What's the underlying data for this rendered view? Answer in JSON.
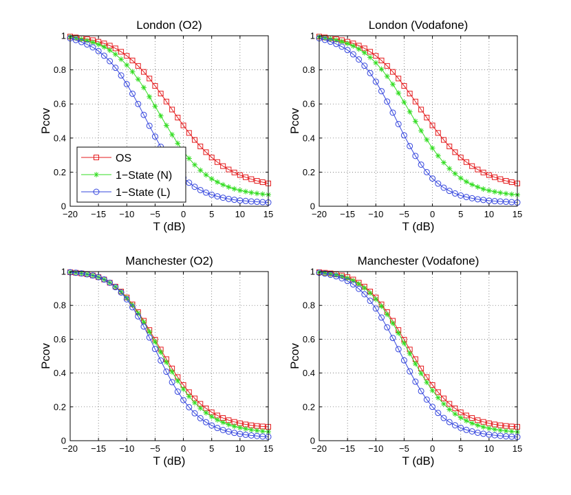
{
  "figure": {
    "series_names": [
      "OS",
      "1−State (N)",
      "1−State (L)"
    ],
    "series_colors": [
      "#e41a1c",
      "#33dd22",
      "#3344dd"
    ],
    "series_markers": [
      "square",
      "asterisk",
      "circle"
    ]
  },
  "chart_data": [
    {
      "type": "line",
      "title": "London (O2)",
      "xlabel": "T (dB)",
      "ylabel": "Pcov",
      "xlim": [
        -20,
        15
      ],
      "ylim": [
        0,
        1
      ],
      "xticks": [
        -20,
        -15,
        -10,
        -5,
        0,
        5,
        10,
        15
      ],
      "yticks": [
        0,
        0.2,
        0.4,
        0.6,
        0.8,
        1
      ],
      "grid": true,
      "legend_position": "lower-left",
      "x": [
        -20,
        -19,
        -18,
        -17,
        -16,
        -15,
        -14,
        -13,
        -12,
        -11,
        -10,
        -9,
        -8,
        -7,
        -6,
        -5,
        -4,
        -3,
        -2,
        -1,
        0,
        1,
        2,
        3,
        4,
        5,
        6,
        7,
        8,
        9,
        10,
        11,
        12,
        13,
        14,
        15
      ],
      "series": [
        {
          "name": "OS",
          "values": [
            0.995,
            0.99,
            0.985,
            0.98,
            0.974,
            0.965,
            0.955,
            0.942,
            0.926,
            0.906,
            0.882,
            0.855,
            0.823,
            0.788,
            0.749,
            0.706,
            0.661,
            0.614,
            0.567,
            0.52,
            0.474,
            0.43,
            0.389,
            0.351,
            0.317,
            0.286,
            0.259,
            0.2355,
            0.2155,
            0.198,
            0.183,
            0.17,
            0.159,
            0.149,
            0.141,
            0.134
          ]
        },
        {
          "name": "1−State (N)",
          "values": [
            0.993,
            0.986,
            0.979,
            0.971,
            0.961,
            0.949,
            0.934,
            0.915,
            0.891,
            0.862,
            0.828,
            0.789,
            0.745,
            0.696,
            0.642,
            0.586,
            0.53,
            0.474,
            0.42,
            0.369,
            0.322,
            0.28,
            0.243,
            0.211,
            0.184,
            0.161,
            0.142,
            0.126,
            0.113,
            0.102,
            0.093,
            0.086,
            0.08,
            0.075,
            0.071,
            0.068
          ]
        },
        {
          "name": "1−State (L)",
          "values": [
            0.985,
            0.975,
            0.963,
            0.949,
            0.932,
            0.91,
            0.883,
            0.851,
            0.812,
            0.767,
            0.716,
            0.66,
            0.6,
            0.536,
            0.472,
            0.409,
            0.349,
            0.294,
            0.245,
            0.203,
            0.167,
            0.138,
            0.114,
            0.095,
            0.08,
            0.068,
            0.058,
            0.05,
            0.043,
            0.038,
            0.034,
            0.031,
            0.028,
            0.026,
            0.024,
            0.022
          ]
        }
      ]
    },
    {
      "type": "line",
      "title": "London (Vodafone)",
      "xlabel": "T (dB)",
      "ylabel": "Pcov",
      "xlim": [
        -20,
        15
      ],
      "ylim": [
        0,
        1
      ],
      "xticks": [
        -20,
        -15,
        -10,
        -5,
        0,
        5,
        10,
        15
      ],
      "yticks": [
        0,
        0.2,
        0.4,
        0.6,
        0.8,
        1
      ],
      "grid": true,
      "x": [
        -20,
        -19,
        -18,
        -17,
        -16,
        -15,
        -14,
        -13,
        -12,
        -11,
        -10,
        -9,
        -8,
        -7,
        -6,
        -5,
        -4,
        -3,
        -2,
        -1,
        0,
        1,
        2,
        3,
        4,
        5,
        6,
        7,
        8,
        9,
        10,
        11,
        12,
        13,
        14,
        15
      ],
      "series": [
        {
          "name": "OS",
          "values": [
            0.995,
            0.99,
            0.985,
            0.98,
            0.974,
            0.965,
            0.955,
            0.942,
            0.926,
            0.906,
            0.882,
            0.855,
            0.823,
            0.788,
            0.749,
            0.706,
            0.661,
            0.614,
            0.567,
            0.52,
            0.474,
            0.43,
            0.389,
            0.351,
            0.317,
            0.286,
            0.259,
            0.2355,
            0.2155,
            0.198,
            0.183,
            0.17,
            0.159,
            0.149,
            0.141,
            0.134
          ]
        },
        {
          "name": "1−State (N)",
          "values": [
            0.993,
            0.987,
            0.981,
            0.974,
            0.965,
            0.954,
            0.94,
            0.922,
            0.9,
            0.873,
            0.841,
            0.804,
            0.762,
            0.715,
            0.664,
            0.61,
            0.554,
            0.498,
            0.443,
            0.39,
            0.341,
            0.296,
            0.256,
            0.221,
            0.191,
            0.165,
            0.144,
            0.127,
            0.113,
            0.101,
            0.092,
            0.085,
            0.079,
            0.074,
            0.07,
            0.067
          ]
        },
        {
          "name": "1−State (L)",
          "values": [
            0.985,
            0.976,
            0.965,
            0.952,
            0.936,
            0.916,
            0.891,
            0.861,
            0.824,
            0.781,
            0.731,
            0.675,
            0.614,
            0.549,
            0.482,
            0.416,
            0.353,
            0.295,
            0.244,
            0.2,
            0.163,
            0.133,
            0.109,
            0.09,
            0.075,
            0.063,
            0.054,
            0.047,
            0.041,
            0.037,
            0.033,
            0.03,
            0.028,
            0.026,
            0.024,
            0.022
          ]
        }
      ]
    },
    {
      "type": "line",
      "title": "Manchester (O2)",
      "xlabel": "T (dB)",
      "ylabel": "Pcov",
      "xlim": [
        -20,
        15
      ],
      "ylim": [
        0,
        1
      ],
      "xticks": [
        -20,
        -15,
        -10,
        -5,
        0,
        5,
        10,
        15
      ],
      "yticks": [
        0,
        0.2,
        0.4,
        0.6,
        0.8,
        1
      ],
      "grid": true,
      "x": [
        -20,
        -19,
        -18,
        -17,
        -16,
        -15,
        -14,
        -13,
        -12,
        -11,
        -10,
        -9,
        -8,
        -7,
        -6,
        -5,
        -4,
        -3,
        -2,
        -1,
        0,
        1,
        2,
        3,
        4,
        5,
        6,
        7,
        8,
        9,
        10,
        11,
        12,
        13,
        14,
        15
      ],
      "series": [
        {
          "name": "OS",
          "values": [
            0.996,
            0.993,
            0.989,
            0.984,
            0.977,
            0.967,
            0.953,
            0.934,
            0.911,
            0.882,
            0.847,
            0.806,
            0.76,
            0.709,
            0.654,
            0.597,
            0.539,
            0.482,
            0.427,
            0.376,
            0.329,
            0.287,
            0.25,
            0.218,
            0.191,
            0.168,
            0.149,
            0.134,
            0.121,
            0.111,
            0.103,
            0.096,
            0.091,
            0.087,
            0.084,
            0.082
          ]
        },
        {
          "name": "1−State (N)",
          "values": [
            0.996,
            0.993,
            0.989,
            0.984,
            0.977,
            0.967,
            0.953,
            0.934,
            0.91,
            0.88,
            0.844,
            0.802,
            0.754,
            0.701,
            0.644,
            0.584,
            0.524,
            0.464,
            0.407,
            0.354,
            0.305,
            0.262,
            0.224,
            0.192,
            0.165,
            0.142,
            0.123,
            0.108,
            0.095,
            0.085,
            0.077,
            0.07,
            0.064,
            0.06,
            0.056,
            0.053
          ]
        },
        {
          "name": "1−State (L)",
          "values": [
            0.996,
            0.993,
            0.989,
            0.984,
            0.977,
            0.967,
            0.953,
            0.934,
            0.908,
            0.876,
            0.836,
            0.789,
            0.735,
            0.675,
            0.61,
            0.542,
            0.474,
            0.408,
            0.346,
            0.29,
            0.24,
            0.198,
            0.162,
            0.133,
            0.109,
            0.09,
            0.075,
            0.063,
            0.054,
            0.046,
            0.04,
            0.035,
            0.031,
            0.028,
            0.025,
            0.023
          ]
        }
      ]
    },
    {
      "type": "line",
      "title": "Manchester (Vodafone)",
      "xlabel": "T (dB)",
      "ylabel": "Pcov",
      "xlim": [
        -20,
        15
      ],
      "ylim": [
        0,
        1
      ],
      "xticks": [
        -20,
        -15,
        -10,
        -5,
        0,
        5,
        10,
        15
      ],
      "yticks": [
        0,
        0.2,
        0.4,
        0.6,
        0.8,
        1
      ],
      "grid": true,
      "x": [
        -20,
        -19,
        -18,
        -17,
        -16,
        -15,
        -14,
        -13,
        -12,
        -11,
        -10,
        -9,
        -8,
        -7,
        -6,
        -5,
        -4,
        -3,
        -2,
        -1,
        0,
        1,
        2,
        3,
        4,
        5,
        6,
        7,
        8,
        9,
        10,
        11,
        12,
        13,
        14,
        15
      ],
      "series": [
        {
          "name": "OS",
          "values": [
            0.996,
            0.993,
            0.989,
            0.984,
            0.977,
            0.967,
            0.953,
            0.934,
            0.911,
            0.882,
            0.847,
            0.806,
            0.76,
            0.709,
            0.654,
            0.597,
            0.539,
            0.482,
            0.427,
            0.376,
            0.329,
            0.287,
            0.25,
            0.218,
            0.191,
            0.168,
            0.149,
            0.134,
            0.121,
            0.111,
            0.103,
            0.096,
            0.091,
            0.087,
            0.084,
            0.082
          ]
        },
        {
          "name": "1−State (N)",
          "values": [
            0.995,
            0.991,
            0.986,
            0.98,
            0.972,
            0.961,
            0.946,
            0.927,
            0.903,
            0.873,
            0.837,
            0.795,
            0.747,
            0.694,
            0.636,
            0.576,
            0.515,
            0.455,
            0.398,
            0.345,
            0.297,
            0.254,
            0.217,
            0.185,
            0.158,
            0.136,
            0.118,
            0.103,
            0.091,
            0.081,
            0.073,
            0.067,
            0.062,
            0.058,
            0.055,
            0.052
          ]
        },
        {
          "name": "1−State (L)",
          "values": [
            0.993,
            0.988,
            0.981,
            0.972,
            0.96,
            0.944,
            0.924,
            0.898,
            0.866,
            0.827,
            0.781,
            0.728,
            0.67,
            0.607,
            0.541,
            0.475,
            0.41,
            0.349,
            0.293,
            0.243,
            0.2,
            0.164,
            0.134,
            0.11,
            0.091,
            0.076,
            0.064,
            0.055,
            0.047,
            0.041,
            0.036,
            0.032,
            0.029,
            0.026,
            0.024,
            0.022
          ]
        }
      ]
    }
  ]
}
